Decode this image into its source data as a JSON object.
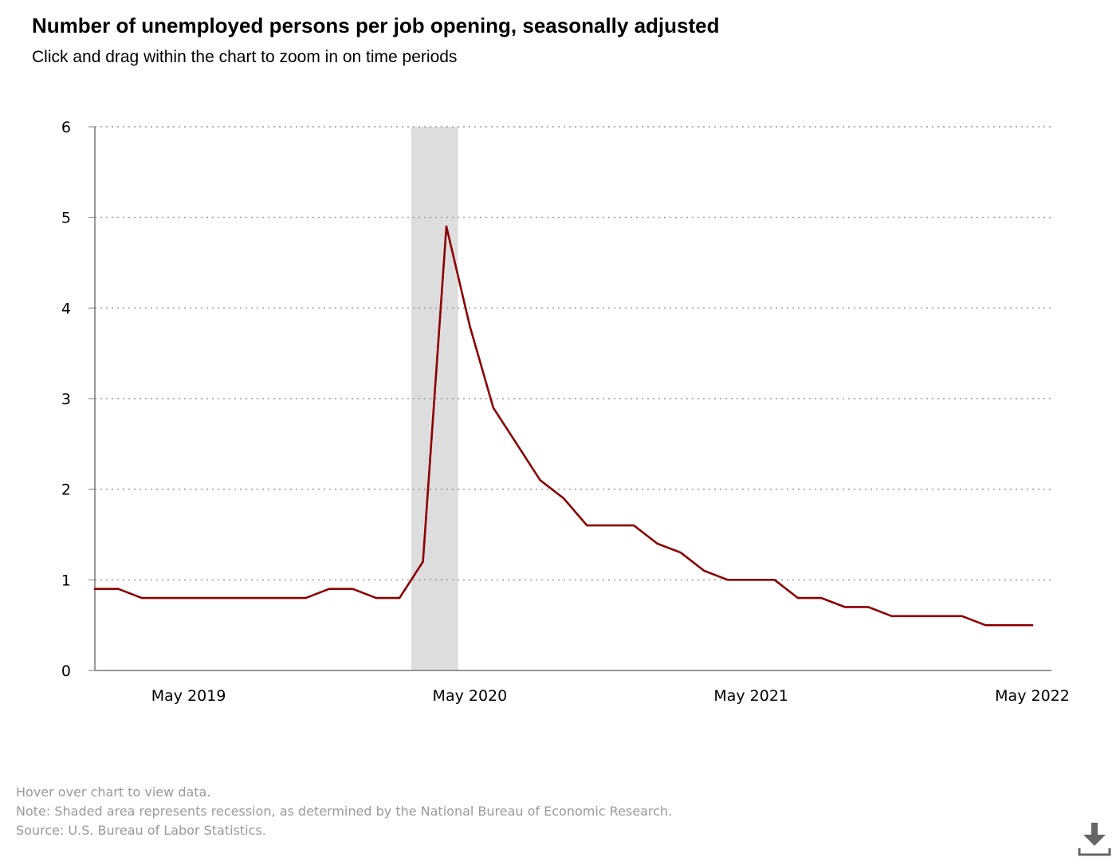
{
  "header": {
    "title": "Number of unemployed persons per job opening, seasonally adjusted",
    "subtitle": "Click and drag within the chart to zoom in on time periods"
  },
  "footnotes": {
    "hover": "Hover over chart to view data.",
    "note": "Note: Shaded area represents recession, as determined by the National Bureau of Economic Research.",
    "source": "Source: U.S. Bureau of Labor Statistics."
  },
  "colors": {
    "line": "#8B0000",
    "recession": "#DDDDDD",
    "grid": "#999999",
    "axis": "#777777"
  },
  "icons": {
    "download": "download-icon"
  },
  "chart_data": {
    "type": "line",
    "title": "Number of unemployed persons per job opening, seasonally adjusted",
    "xlabel": "",
    "ylabel": "",
    "ylim": [
      0,
      6
    ],
    "yticks": [
      0,
      1,
      2,
      3,
      4,
      5,
      6
    ],
    "grid": true,
    "x_tick_labels": [
      {
        "label": "May 2019",
        "index": 4
      },
      {
        "label": "May 2020",
        "index": 16
      },
      {
        "label": "May 2021",
        "index": 28
      },
      {
        "label": "May 2022",
        "index": 40
      }
    ],
    "recession": {
      "start_index": 13.5,
      "end_index": 15.5
    },
    "series": [
      {
        "name": "Unemployed persons per job opening",
        "x": [
          "Jan 2019",
          "Feb 2019",
          "Mar 2019",
          "Apr 2019",
          "May 2019",
          "Jun 2019",
          "Jul 2019",
          "Aug 2019",
          "Sep 2019",
          "Oct 2019",
          "Nov 2019",
          "Dec 2019",
          "Jan 2020",
          "Feb 2020",
          "Mar 2020",
          "Apr 2020",
          "May 2020",
          "Jun 2020",
          "Jul 2020",
          "Aug 2020",
          "Sep 2020",
          "Oct 2020",
          "Nov 2020",
          "Dec 2020",
          "Jan 2021",
          "Feb 2021",
          "Mar 2021",
          "Apr 2021",
          "May 2021",
          "Jun 2021",
          "Jul 2021",
          "Aug 2021",
          "Sep 2021",
          "Oct 2021",
          "Nov 2021",
          "Dec 2021",
          "Jan 2022",
          "Feb 2022",
          "Mar 2022",
          "Apr 2022",
          "May 2022"
        ],
        "values": [
          0.9,
          0.9,
          0.8,
          0.8,
          0.8,
          0.8,
          0.8,
          0.8,
          0.8,
          0.8,
          0.9,
          0.9,
          0.8,
          0.8,
          1.2,
          4.9,
          3.8,
          2.9,
          2.5,
          2.1,
          1.9,
          1.6,
          1.6,
          1.6,
          1.4,
          1.3,
          1.1,
          1.0,
          1.0,
          1.0,
          0.8,
          0.8,
          0.7,
          0.7,
          0.6,
          0.6,
          0.6,
          0.6,
          0.5,
          0.5,
          0.5
        ]
      }
    ]
  }
}
